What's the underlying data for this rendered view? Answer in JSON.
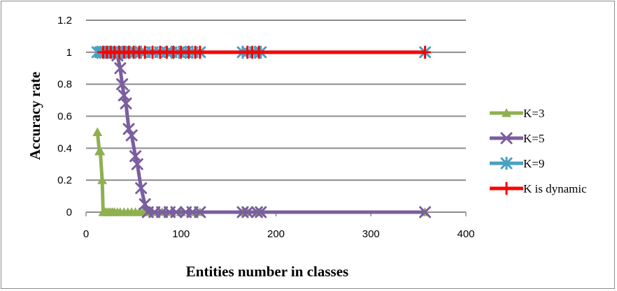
{
  "chart_data": {
    "type": "line",
    "xlabel": "Entities number in classes",
    "ylabel": "Accuracy rate",
    "xlim": [
      0,
      400
    ],
    "ylim": [
      0,
      1.2
    ],
    "x_ticks": [
      "0",
      "100",
      "200",
      "300",
      "400"
    ],
    "y_ticks": [
      "0",
      "0.2",
      "0.4",
      "0.6",
      "0.8",
      "1",
      "1.2"
    ],
    "grid": "horizontal",
    "legend_position": "right",
    "series": [
      {
        "name": "K=3",
        "color": "#8fb050",
        "marker": "triangle",
        "points": [
          [
            12,
            0.5
          ],
          [
            14,
            0.38
          ],
          [
            15,
            0.38
          ],
          [
            17,
            0.2
          ],
          [
            18,
            0.0
          ],
          [
            20,
            0.0
          ],
          [
            22,
            0.0
          ],
          [
            24,
            0.0
          ],
          [
            26,
            0.0
          ],
          [
            28,
            0.0
          ],
          [
            30,
            0.0
          ],
          [
            33,
            0.0
          ],
          [
            36,
            0.0
          ],
          [
            40,
            0.0
          ],
          [
            44,
            0.0
          ],
          [
            48,
            0.0
          ],
          [
            52,
            0.0
          ],
          [
            56,
            0.0
          ],
          [
            60,
            0.0
          ],
          [
            65,
            0.0
          ],
          [
            70,
            0.0
          ],
          [
            80,
            0.0
          ],
          [
            90,
            0.0
          ],
          [
            100,
            0.0
          ],
          [
            110,
            0.0
          ],
          [
            120,
            0.0
          ],
          [
            165,
            0.0
          ],
          [
            170,
            0.0
          ],
          [
            180,
            0.0
          ],
          [
            184,
            0.0
          ],
          [
            357,
            0.0
          ]
        ]
      },
      {
        "name": "K=5",
        "color": "#7a5ea0",
        "marker": "x",
        "points": [
          [
            33,
            0.98
          ],
          [
            36,
            0.9
          ],
          [
            38,
            0.8
          ],
          [
            40,
            0.73
          ],
          [
            42,
            0.68
          ],
          [
            45,
            0.52
          ],
          [
            48,
            0.48
          ],
          [
            52,
            0.35
          ],
          [
            54,
            0.3
          ],
          [
            58,
            0.15
          ],
          [
            62,
            0.05
          ],
          [
            65,
            0.0
          ],
          [
            72,
            0.0
          ],
          [
            80,
            0.0
          ],
          [
            88,
            0.0
          ],
          [
            95,
            0.0
          ],
          [
            105,
            0.0
          ],
          [
            112,
            0.0
          ],
          [
            120,
            0.0
          ],
          [
            165,
            0.0
          ],
          [
            170,
            0.0
          ],
          [
            180,
            0.0
          ],
          [
            184,
            0.0
          ],
          [
            357,
            0.0
          ]
        ]
      },
      {
        "name": "K=9",
        "color": "#4aa0c0",
        "marker": "star",
        "points": [
          [
            12,
            1
          ],
          [
            15,
            1
          ],
          [
            18,
            1
          ],
          [
            20,
            1
          ],
          [
            24,
            1
          ],
          [
            27,
            1
          ],
          [
            30,
            1
          ],
          [
            34,
            1
          ],
          [
            38,
            1
          ],
          [
            42,
            1
          ],
          [
            46,
            1
          ],
          [
            52,
            1
          ],
          [
            58,
            1
          ],
          [
            62,
            1
          ],
          [
            70,
            1
          ],
          [
            78,
            1
          ],
          [
            85,
            1
          ],
          [
            90,
            1
          ],
          [
            98,
            1
          ],
          [
            105,
            1
          ],
          [
            112,
            1
          ],
          [
            120,
            1
          ],
          [
            165,
            1
          ],
          [
            170,
            1
          ],
          [
            178,
            1
          ],
          [
            184,
            1
          ],
          [
            357,
            1
          ]
        ]
      },
      {
        "name": "K is dynamic",
        "color": "#ff0000",
        "marker": "plus",
        "points": [
          [
            18,
            1
          ],
          [
            22,
            1
          ],
          [
            26,
            1
          ],
          [
            30,
            1
          ],
          [
            35,
            1
          ],
          [
            40,
            1
          ],
          [
            45,
            1
          ],
          [
            50,
            1
          ],
          [
            56,
            1
          ],
          [
            62,
            1
          ],
          [
            70,
            1
          ],
          [
            78,
            1
          ],
          [
            85,
            1
          ],
          [
            92,
            1
          ],
          [
            100,
            1
          ],
          [
            108,
            1
          ],
          [
            115,
            1
          ],
          [
            120,
            1
          ],
          [
            170,
            1
          ],
          [
            175,
            1
          ],
          [
            182,
            1
          ],
          [
            357,
            1
          ]
        ]
      }
    ]
  }
}
